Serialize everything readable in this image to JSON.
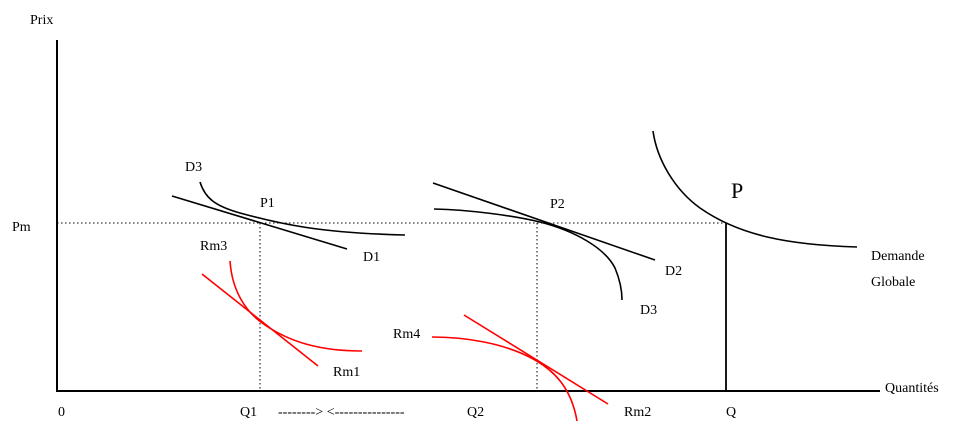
{
  "axes": {
    "y_label": "Prix",
    "x_label": "Quantités",
    "origin": "0",
    "pm": "Pm"
  },
  "quantities": {
    "q1": "Q1",
    "q2": "Q2",
    "q": "Q",
    "arrow_text": "--------> <---------------"
  },
  "points": {
    "p1": "P1",
    "p2": "P2",
    "p": "P"
  },
  "curves": {
    "d1": "D1",
    "d2": "D2",
    "d3_left": "D3",
    "d3_right": "D3",
    "rm1": "Rm1",
    "rm2": "Rm2",
    "rm3": "Rm3",
    "rm4": "Rm4",
    "demand_line1": "Demande",
    "demand_line2": "Globale"
  },
  "colors": {
    "demand": "#000000",
    "marginal_revenue": "#ff0000"
  }
}
